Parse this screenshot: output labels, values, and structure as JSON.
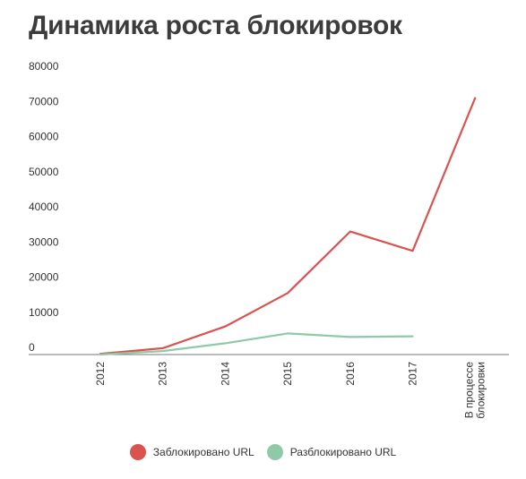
{
  "chart_data": {
    "type": "line",
    "title": "Динамика роста блокировок",
    "categories": [
      "2012",
      "2013",
      "2014",
      "2015",
      "2016",
      "2017",
      "В процессе блокировки"
    ],
    "category_lines": [
      [
        "2012"
      ],
      [
        "2013"
      ],
      [
        "2014"
      ],
      [
        "2015"
      ],
      [
        "2016"
      ],
      [
        "2017"
      ],
      [
        "В процессе",
        "блокировки"
      ]
    ],
    "y_ticks": [
      "0",
      "10000",
      "20000",
      "30000",
      "40000",
      "50000",
      "60000",
      "70000",
      "80000"
    ],
    "ylim": [
      0,
      80000
    ],
    "grid": false,
    "legend_position": "bottom",
    "series": [
      {
        "name": "Заблокировано URL",
        "color": "#d9534f",
        "values": [
          200,
          1800,
          8000,
          17500,
          35000,
          29500,
          73000
        ]
      },
      {
        "name": "Разблокировано URL",
        "color": "#8fc9a8",
        "values": [
          0,
          1000,
          3200,
          6000,
          5000,
          5200,
          null
        ]
      }
    ]
  }
}
